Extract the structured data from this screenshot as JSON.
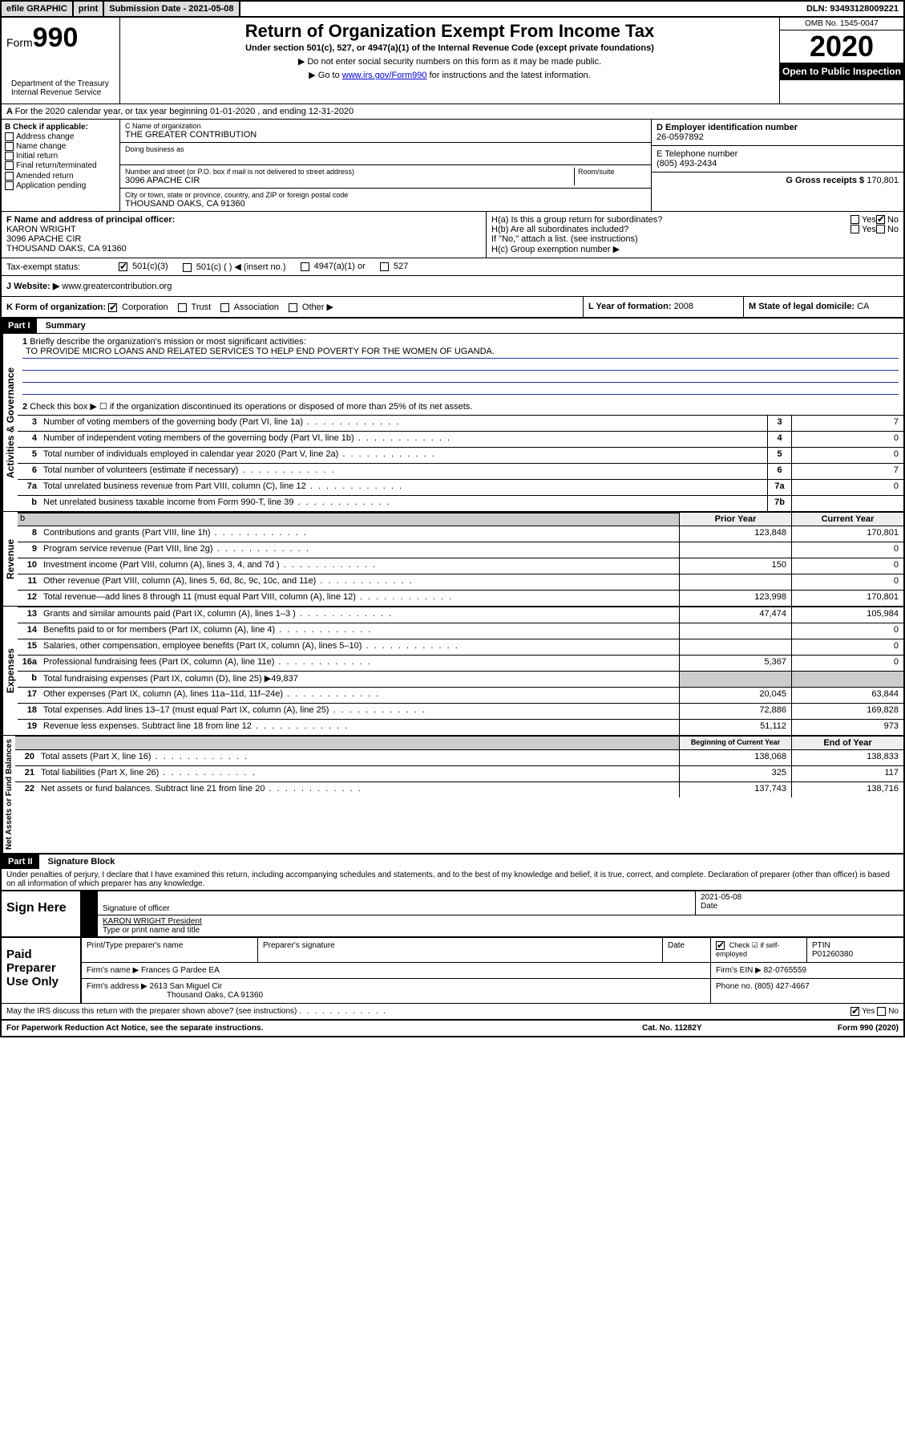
{
  "topbar": {
    "efile": "efile GRAPHIC",
    "print": "print",
    "subdate_label": "Submission Date - 2021-05-08",
    "dln": "DLN: 93493128009221"
  },
  "header": {
    "form_word": "Form",
    "form_num": "990",
    "title": "Return of Organization Exempt From Income Tax",
    "sub1": "Under section 501(c), 527, or 4947(a)(1) of the Internal Revenue Code (except private foundations)",
    "sub2": "▶ Do not enter social security numbers on this form as it may be made public.",
    "sub3a": "▶ Go to ",
    "sub3_link": "www.irs.gov/Form990",
    "sub3b": " for instructions and the latest information.",
    "omb": "OMB No. 1545-0047",
    "year": "2020",
    "open": "Open to Public Inspection",
    "dept": "Department of the Treasury\nInternal Revenue Service"
  },
  "period": "For the 2020 calendar year, or tax year beginning 01-01-2020    , and ending 12-31-2020",
  "boxB": {
    "label": "B Check if applicable:",
    "opts": [
      "Address change",
      "Name change",
      "Initial return",
      "Final return/terminated",
      "Amended return",
      "Application pending"
    ]
  },
  "boxC": {
    "name_label": "C Name of organization",
    "name": "THE GREATER CONTRIBUTION",
    "dba_label": "Doing business as",
    "addr_label": "Number and street (or P.O. box if mail is not delivered to street address)",
    "room_label": "Room/suite",
    "addr": "3096 APACHE CIR",
    "city_label": "City or town, state or province, country, and ZIP or foreign postal code",
    "city": "THOUSAND OAKS, CA  91360"
  },
  "boxD": {
    "label": "D Employer identification number",
    "val": "26-0597892"
  },
  "boxE": {
    "label": "E Telephone number",
    "val": "(805) 493-2434"
  },
  "boxG": {
    "label": "G Gross receipts $ ",
    "val": "170,801"
  },
  "boxF": {
    "label": "F  Name and address of principal officer:",
    "name": "KARON WRIGHT",
    "addr1": "3096 APACHE CIR",
    "addr2": "THOUSAND OAKS, CA  91360"
  },
  "boxH": {
    "ha": "H(a)  Is this a group return for subordinates?",
    "hb": "H(b)  Are all subordinates included?",
    "hb_note": "If \"No,\" attach a list. (see instructions)",
    "hc": "H(c)  Group exemption number ▶",
    "yes": "Yes",
    "no": "No"
  },
  "taxStatus": {
    "label": "Tax-exempt status:",
    "opts": [
      "501(c)(3)",
      "501(c) (   ) ◀ (insert no.)",
      "4947(a)(1) or",
      "527"
    ]
  },
  "boxJ": {
    "label": "J    Website: ▶",
    "val": "  www.greatercontribution.org"
  },
  "boxK": {
    "label": "K Form of organization:",
    "opts": [
      "Corporation",
      "Trust",
      "Association",
      "Other ▶"
    ]
  },
  "boxL": {
    "label": "L Year of formation: ",
    "val": "2008"
  },
  "boxM": {
    "label": "M State of legal domicile: ",
    "val": "CA"
  },
  "part1": {
    "header": "Part I",
    "title": "Summary"
  },
  "summary": {
    "l1": "Briefly describe the organization's mission or most significant activities:",
    "mission": "TO PROVIDE MICRO LOANS AND RELATED SERVICES TO HELP END POVERTY FOR THE WOMEN OF UGANDA.",
    "l2": "Check this box ▶ ☐  if the organization discontinued its operations or disposed of more than 25% of its net assets.",
    "rows_gov": [
      {
        "n": "3",
        "d": "Number of voting members of the governing body (Part VI, line 1a)",
        "b": "3",
        "v": "7"
      },
      {
        "n": "4",
        "d": "Number of independent voting members of the governing body (Part VI, line 1b)",
        "b": "4",
        "v": "0"
      },
      {
        "n": "5",
        "d": "Total number of individuals employed in calendar year 2020 (Part V, line 2a)",
        "b": "5",
        "v": "0"
      },
      {
        "n": "6",
        "d": "Total number of volunteers (estimate if necessary)",
        "b": "6",
        "v": "7"
      },
      {
        "n": "7a",
        "d": "Total unrelated business revenue from Part VIII, column (C), line 12",
        "b": "7a",
        "v": "0"
      },
      {
        "n": "b",
        "d": "Net unrelated business taxable income from Form 990-T, line 39",
        "b": "7b",
        "v": ""
      }
    ],
    "prior_hdr": "Prior Year",
    "curr_hdr": "Current Year",
    "rows_rev": [
      {
        "n": "8",
        "d": "Contributions and grants (Part VIII, line 1h)",
        "p": "123,848",
        "c": "170,801"
      },
      {
        "n": "9",
        "d": "Program service revenue (Part VIII, line 2g)",
        "p": "",
        "c": "0"
      },
      {
        "n": "10",
        "d": "Investment income (Part VIII, column (A), lines 3, 4, and 7d )",
        "p": "150",
        "c": "0"
      },
      {
        "n": "11",
        "d": "Other revenue (Part VIII, column (A), lines 5, 6d, 8c, 9c, 10c, and 11e)",
        "p": "",
        "c": "0"
      },
      {
        "n": "12",
        "d": "Total revenue—add lines 8 through 11 (must equal Part VIII, column (A), line 12)",
        "p": "123,998",
        "c": "170,801"
      }
    ],
    "rows_exp": [
      {
        "n": "13",
        "d": "Grants and similar amounts paid (Part IX, column (A), lines 1–3 )",
        "p": "47,474",
        "c": "105,984"
      },
      {
        "n": "14",
        "d": "Benefits paid to or for members (Part IX, column (A), line 4)",
        "p": "",
        "c": "0"
      },
      {
        "n": "15",
        "d": "Salaries, other compensation, employee benefits (Part IX, column (A), lines 5–10)",
        "p": "",
        "c": "0"
      },
      {
        "n": "16a",
        "d": "Professional fundraising fees (Part IX, column (A), line 11e)",
        "p": "5,367",
        "c": "0"
      },
      {
        "n": "b",
        "d": "Total fundraising expenses (Part IX, column (D), line 25) ▶49,837",
        "p": "",
        "c": "",
        "shaded": true
      },
      {
        "n": "17",
        "d": "Other expenses (Part IX, column (A), lines 11a–11d, 11f–24e)",
        "p": "20,045",
        "c": "63,844"
      },
      {
        "n": "18",
        "d": "Total expenses. Add lines 13–17 (must equal Part IX, column (A), line 25)",
        "p": "72,886",
        "c": "169,828"
      },
      {
        "n": "19",
        "d": "Revenue less expenses. Subtract line 18 from line 12",
        "p": "51,112",
        "c": "973"
      }
    ],
    "begin_hdr": "Beginning of Current Year",
    "end_hdr": "End of Year",
    "rows_net": [
      {
        "n": "20",
        "d": "Total assets (Part X, line 16)",
        "p": "138,068",
        "c": "138,833"
      },
      {
        "n": "21",
        "d": "Total liabilities (Part X, line 26)",
        "p": "325",
        "c": "117"
      },
      {
        "n": "22",
        "d": "Net assets or fund balances. Subtract line 21 from line 20",
        "p": "137,743",
        "c": "138,716"
      }
    ],
    "vlabels": {
      "gov": "Activities & Governance",
      "rev": "Revenue",
      "exp": "Expenses",
      "net": "Net Assets or Fund Balances"
    }
  },
  "part2": {
    "header": "Part II",
    "title": "Signature Block"
  },
  "sig": {
    "penalty": "Under penalties of perjury, I declare that I have examined this return, including accompanying schedules and statements, and to the best of my knowledge and belief, it is true, correct, and complete. Declaration of preparer (other than officer) is based on all information of which preparer has any knowledge.",
    "sign_here": "Sign Here",
    "sig_officer": "Signature of officer",
    "date_label": "Date",
    "date_val": "2021-05-08",
    "name_title": "KARON WRIGHT  President",
    "type_label": "Type or print name and title"
  },
  "prep": {
    "label": "Paid Preparer Use Only",
    "print_label": "Print/Type preparer's name",
    "sig_label": "Preparer's signature",
    "date_label": "Date",
    "check_label": "Check ☑ if self-employed",
    "ptin_label": "PTIN",
    "ptin": "P01260380",
    "firm_name_label": "Firm's name    ▶",
    "firm_name": "Frances G Pardee EA",
    "firm_ein_label": "Firm's EIN ▶",
    "firm_ein": "82-0765559",
    "firm_addr_label": "Firm's address ▶",
    "firm_addr1": "2613 San Miguel Cir",
    "firm_addr2": "Thousand Oaks, CA  91360",
    "phone_label": "Phone no.",
    "phone": "(805) 427-4667"
  },
  "footer": {
    "discuss": "May the IRS discuss this return with the preparer shown above? (see instructions)",
    "yes": "Yes",
    "no": "No",
    "paperwork": "For Paperwork Reduction Act Notice, see the separate instructions.",
    "cat": "Cat. No. 11282Y",
    "form": "Form 990 (2020)"
  }
}
